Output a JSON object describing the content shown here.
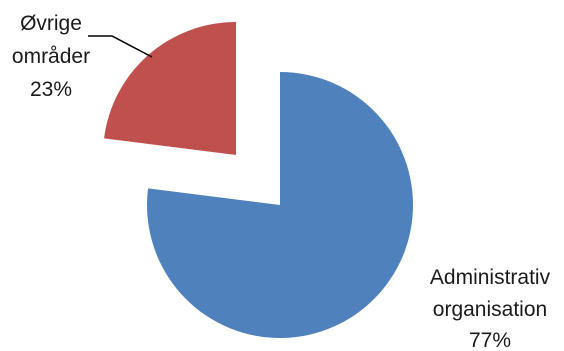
{
  "chart_data": {
    "type": "pie",
    "exploded": true,
    "legend": "none",
    "slices": [
      {
        "label_lines": [
          "Administrativ",
          "organisation"
        ],
        "value_label": "77%",
        "value": 77,
        "color": "#4f81bd"
      },
      {
        "label_lines": [
          "Øvrige",
          "områder"
        ],
        "value_label": "23%",
        "value": 23,
        "color": "#c0504d"
      }
    ]
  }
}
